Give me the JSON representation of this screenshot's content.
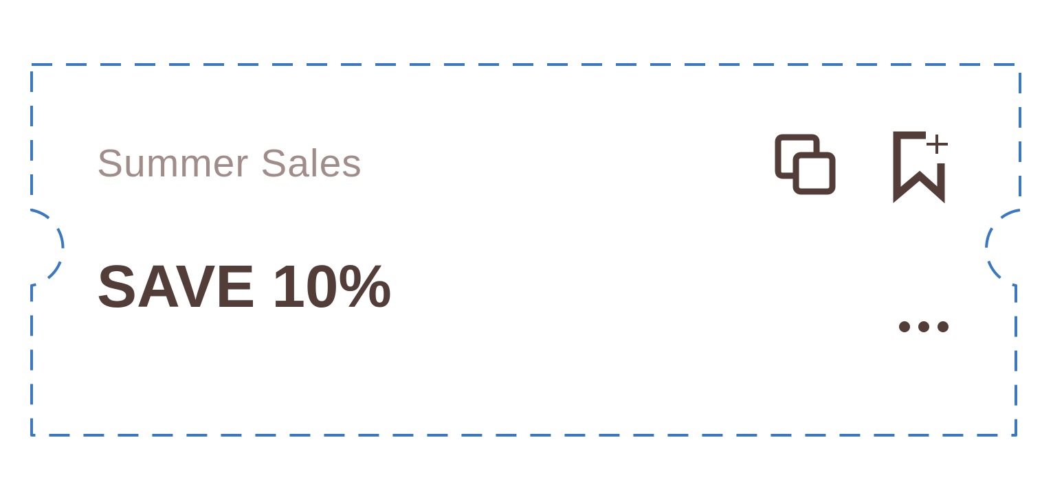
{
  "colors": {
    "outline": "#3b78c3",
    "icon": "#523d38",
    "title_text": "#a08c89",
    "headline_text": "#523d38"
  },
  "coupon": {
    "title": "Summer Sales",
    "headline": "SAVE 10%"
  },
  "actions": {
    "copy_icon": "copy-icon",
    "bookmark_icon": "bookmark-add-icon",
    "more_icon": "more-horizontal-icon"
  }
}
